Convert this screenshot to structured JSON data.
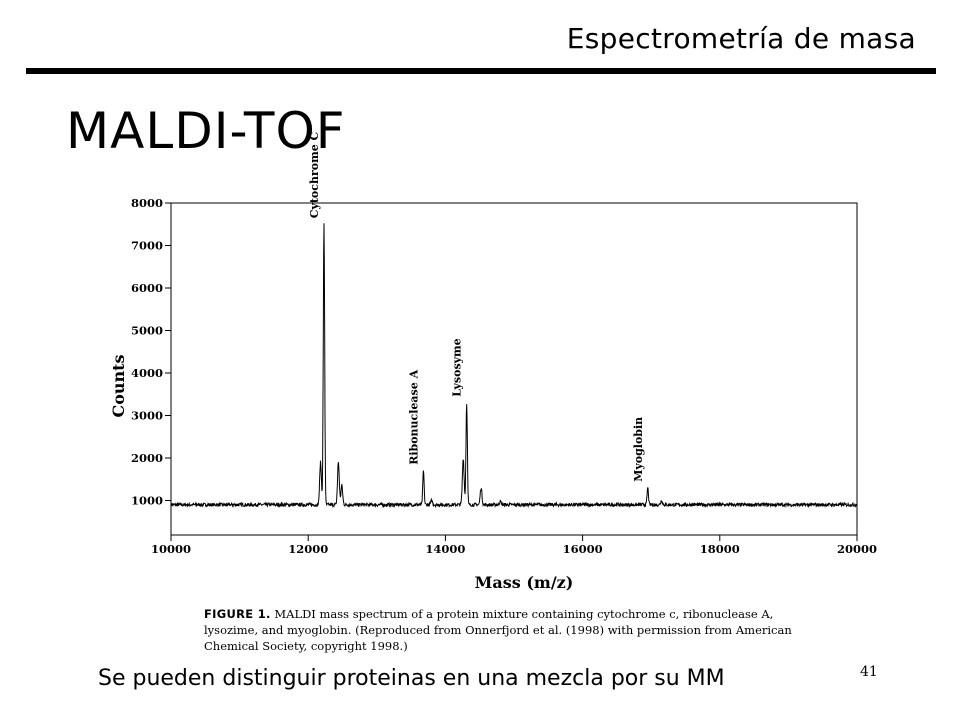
{
  "slide": {
    "section_title": "Espectrometría de masa",
    "title": "MALDI-TOF",
    "footer_text": "Se pueden distinguir proteinas en una mezcla por su MM",
    "page_number": "41"
  },
  "figure": {
    "caption_label": "FIGURE 1.",
    "caption_text": " MALDI mass spectrum of a protein mixture containing cytochrome c, ribonuclease A, lysozime, and myoglobin. (Reproduced from Onnerfjord et al. (1998) with permission from American Chemical Society, copyright 1998.)"
  },
  "chart_data": {
    "type": "line",
    "xlabel": "Mass (m/z)",
    "ylabel": "Counts",
    "xlim": [
      10000,
      20000
    ],
    "ylim": [
      0,
      8000
    ],
    "x_ticks": [
      "10000",
      "12000",
      "14000",
      "16000",
      "18000",
      "20000"
    ],
    "y_ticks": [
      "1000",
      "2000",
      "3000",
      "4000",
      "5000",
      "6000",
      "7000",
      "8000"
    ],
    "baseline": 900,
    "peaks": [
      {
        "name": "Cytochrome C",
        "mass": 12230,
        "counts": 7500
      },
      {
        "name": "Ribonuclease A",
        "mass": 13680,
        "counts": 1700
      },
      {
        "name": "Lysosyme",
        "mass": 14310,
        "counts": 3300
      },
      {
        "name": "Myoglobin",
        "mass": 16950,
        "counts": 1300
      }
    ],
    "minor_peaks": [
      {
        "mass": 12180,
        "counts": 1900
      },
      {
        "mass": 12440,
        "counts": 1900
      },
      {
        "mass": 12490,
        "counts": 1350
      },
      {
        "mass": 14260,
        "counts": 2000
      },
      {
        "mass": 14520,
        "counts": 1300
      },
      {
        "mass": 13800,
        "counts": 1000
      },
      {
        "mass": 17150,
        "counts": 1000
      },
      {
        "mass": 14800,
        "counts": 980
      }
    ],
    "grid": false
  }
}
